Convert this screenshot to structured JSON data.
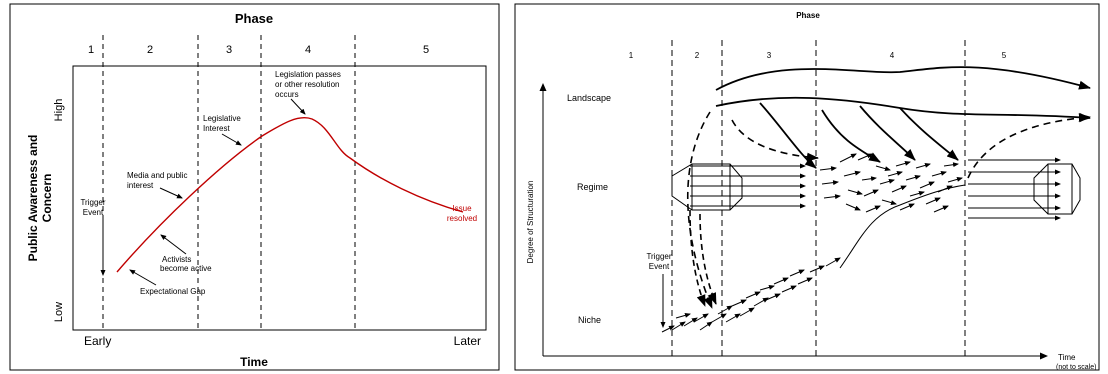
{
  "left": {
    "phase_title": "Phase",
    "phases": [
      "1",
      "2",
      "3",
      "4",
      "5"
    ],
    "y_axis_label_line1": "Public Awareness and",
    "y_axis_label_line2": "Concern",
    "y_high": "High",
    "y_low": "Low",
    "x_early": "Early",
    "x_later": "Later",
    "x_axis_label": "Time",
    "annotations": {
      "trigger_event_line1": "Trigger",
      "trigger_event_line2": "Event",
      "expectational_gap": "Expectational Gap",
      "activists_line1": "Activists",
      "activists_line2": "become active",
      "media_line1": "Media and public",
      "media_line2": "interest",
      "legislative_line1": "Legislative",
      "legislative_line2": "Interest",
      "legislation_line1": "Legislation passes",
      "legislation_line2": "or other resolution",
      "legislation_line3": "occurs",
      "issue_resolved_line1": "Issue",
      "issue_resolved_line2": "resolved"
    },
    "curve_color": "#c00000"
  },
  "right": {
    "phase_title": "Phase",
    "phases": [
      "1",
      "2",
      "3",
      "4",
      "5"
    ],
    "y_axis_label": "Degree of Structuration",
    "levels": {
      "landscape": "Landscape",
      "regime": "Regime",
      "niche": "Niche"
    },
    "trigger_line1": "Trigger",
    "trigger_line2": "Event",
    "time_label": "Time",
    "time_note": "(not to scale)"
  }
}
